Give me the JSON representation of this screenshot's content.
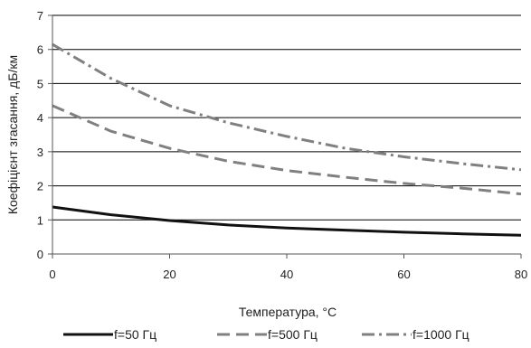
{
  "chart_data": {
    "type": "line",
    "xlabel": "Температура, °C",
    "ylabel": "Коефіцієнт згасання, дБ/км",
    "xlim": [
      0,
      80
    ],
    "ylim": [
      0,
      7
    ],
    "x_ticks": [
      "0",
      "20",
      "40",
      "60",
      "80"
    ],
    "y_ticks": [
      "0",
      "1",
      "2",
      "3",
      "4",
      "5",
      "6",
      "7"
    ],
    "grid": "horizontal",
    "legend_position": "bottom",
    "x": [
      0,
      10,
      20,
      30,
      40,
      50,
      60,
      70,
      80
    ],
    "series": [
      {
        "name": "f=50 Гц",
        "style": "solid",
        "color": "#111111",
        "values": [
          1.38,
          1.15,
          0.98,
          0.85,
          0.76,
          0.7,
          0.64,
          0.59,
          0.55
        ]
      },
      {
        "name": "f=500 Гц",
        "style": "dash",
        "color": "#808080",
        "values": [
          4.35,
          3.6,
          3.1,
          2.72,
          2.45,
          2.25,
          2.07,
          1.93,
          1.76
        ]
      },
      {
        "name": "f=1000 Гц",
        "style": "dashdot",
        "color": "#808080",
        "values": [
          6.15,
          5.15,
          4.35,
          3.85,
          3.45,
          3.1,
          2.85,
          2.65,
          2.47
        ]
      }
    ]
  }
}
